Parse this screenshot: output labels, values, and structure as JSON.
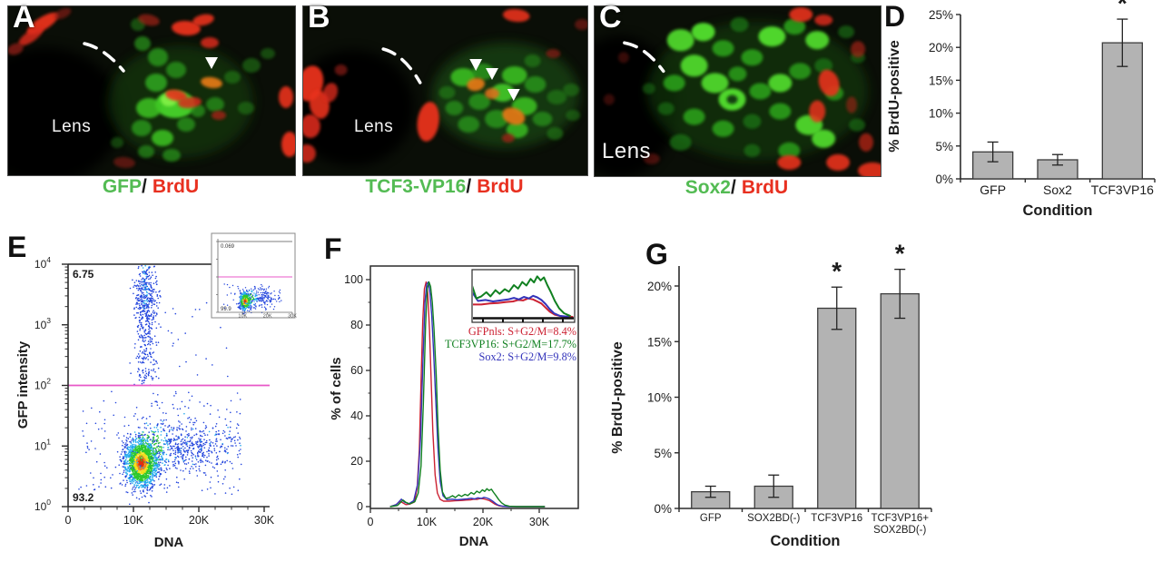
{
  "panels": {
    "A": {
      "letter": "A",
      "lens_label": "Lens",
      "caption": {
        "green": "GFP",
        "slash": "/",
        "red": "BrdU"
      },
      "arrowheads": 1
    },
    "B": {
      "letter": "B",
      "lens_label": "Lens",
      "caption": {
        "green": "TCF3-VP16",
        "slash": "/",
        "red": "BrdU"
      },
      "arrowheads": 3
    },
    "C": {
      "letter": "C",
      "lens_label": "Lens",
      "caption": {
        "green": "Sox2",
        "slash": "/",
        "red": "BrdU"
      },
      "arrowheads": 0
    },
    "D": {
      "letter": "D"
    },
    "E": {
      "letter": "E"
    },
    "F": {
      "letter": "F"
    },
    "G": {
      "letter": "G"
    }
  },
  "colors": {
    "caption_green": "#53bb53",
    "caption_red": "#e83020",
    "caption_slash": "#1c1c1c",
    "bar_fill": "#b3b3b3",
    "bar_stroke": "#3c3c3c",
    "axis": "#2b2b2b",
    "gate_line": "#e858c8",
    "scatter_palette": [
      "#e03010",
      "#f08020",
      "#f0e020",
      "#2ec82e",
      "#22aaee",
      "#2244dd"
    ]
  },
  "chart_data": [
    {
      "id": "D",
      "type": "bar",
      "title": "",
      "ylabel": "% BrdU-positive",
      "xlabel": "Condition",
      "categories": [
        "GFP",
        "Sox2",
        "TCF3VP16"
      ],
      "values": [
        4.1,
        2.9,
        20.7
      ],
      "errors": [
        1.5,
        0.8,
        3.6
      ],
      "significance": [
        "",
        "",
        "*"
      ],
      "ylim": [
        0,
        25
      ],
      "ytick_labels": [
        "0%",
        "5%",
        "10%",
        "15%",
        "20%",
        "25%"
      ],
      "legend_position": "none",
      "grid": false
    },
    {
      "id": "E",
      "type": "scatter",
      "title": "",
      "xlabel": "DNA",
      "ylabel": "GFP intensity",
      "xlim": [
        0,
        30000
      ],
      "xtick_labels": [
        "0",
        "10K",
        "20K",
        "30K"
      ],
      "ytick_exponents": [
        0,
        1,
        2,
        3,
        4
      ],
      "yscale": "log",
      "gate_top_label": "6.75",
      "gate_bottom_label": "93.2",
      "gate_line_log": 2,
      "clusters": [
        {
          "name": "g1-population",
          "n": 1800,
          "cx": 11200,
          "sx": 1250,
          "cy_log": 0.72,
          "sy_log": 0.2
        },
        {
          "name": "s-g2-tail",
          "n": 620,
          "cx": 16500,
          "sx": 4300,
          "cy_log": 1.0,
          "sy_log": 0.22
        },
        {
          "name": "gfp-positive-plume",
          "n": 560,
          "cx": 11800,
          "sx": 850,
          "log_min": 2.0,
          "log_max": 4.0
        },
        {
          "name": "background",
          "n": 200,
          "x_min": 1500,
          "x_max": 26500,
          "log_min": 0.2,
          "log_max": 1.9
        },
        {
          "name": "upper-sparse",
          "n": 28,
          "x_min": 13000,
          "x_max": 25000,
          "log_min": 2.1,
          "log_max": 3.5
        }
      ],
      "inset": {
        "gate_top_label": "0.069",
        "gate_bottom_label": "99.9",
        "xtick_labels": [
          "10K",
          "20K",
          "30K"
        ]
      }
    },
    {
      "id": "F",
      "type": "line",
      "title": "",
      "xlabel": "DNA",
      "ylabel": "% of cells",
      "xlim": [
        0,
        32000
      ],
      "ylim": [
        0,
        100
      ],
      "points_x_unit": "K",
      "ytick_labels": [
        "0",
        "20",
        "40",
        "60",
        "80",
        "100"
      ],
      "xtick_labels": [
        "0",
        "10K",
        "20K",
        "30K"
      ],
      "legend_position": "right-of-inset",
      "series": [
        {
          "name": "GFPnls",
          "legend": "GFPnls: S+G2/M=8.4%",
          "color": "#cc2233",
          "points": [
            [
              3.5,
              0
            ],
            [
              4.5,
              0.8
            ],
            [
              5.3,
              2.4
            ],
            [
              5.8,
              1.6
            ],
            [
              6.3,
              0.9
            ],
            [
              7,
              1.1
            ],
            [
              7.8,
              2
            ],
            [
              8.3,
              8
            ],
            [
              8.7,
              25
            ],
            [
              9,
              55
            ],
            [
              9.3,
              82
            ],
            [
              9.6,
              96
            ],
            [
              9.9,
              99
            ],
            [
              10.2,
              94
            ],
            [
              10.5,
              78
            ],
            [
              10.8,
              55
            ],
            [
              11.1,
              33
            ],
            [
              11.5,
              14
            ],
            [
              11.9,
              6
            ],
            [
              12.4,
              3.2
            ],
            [
              13,
              2.4
            ],
            [
              14,
              2.4
            ],
            [
              15,
              2.6
            ],
            [
              16,
              2.7
            ],
            [
              17,
              2.9
            ],
            [
              17.8,
              3
            ],
            [
              18.4,
              3.3
            ],
            [
              19,
              3.2
            ],
            [
              19.6,
              3.6
            ],
            [
              20.2,
              3.4
            ],
            [
              20.7,
              3
            ],
            [
              21.2,
              2.6
            ],
            [
              21.7,
              1.8
            ],
            [
              22.2,
              1
            ],
            [
              22.8,
              0.4
            ],
            [
              23.6,
              0.1
            ],
            [
              25,
              0
            ],
            [
              31,
              0
            ]
          ]
        },
        {
          "name": "TCF3VP16",
          "legend": "TCF3VP16: S+G2/M=17.7%",
          "color": "#108020",
          "points": [
            [
              3.5,
              0
            ],
            [
              4.8,
              0.5
            ],
            [
              5.8,
              2.9
            ],
            [
              6.3,
              1.9
            ],
            [
              7,
              1.2
            ],
            [
              7.9,
              2.2
            ],
            [
              8.5,
              6
            ],
            [
              9,
              18
            ],
            [
              9.4,
              45
            ],
            [
              9.8,
              80
            ],
            [
              10.1,
              96
            ],
            [
              10.4,
              99
            ],
            [
              10.7,
              97
            ],
            [
              11,
              90
            ],
            [
              11.3,
              78
            ],
            [
              11.7,
              58
            ],
            [
              12,
              36
            ],
            [
              12.4,
              16
            ],
            [
              12.8,
              6.5
            ],
            [
              13.4,
              3.6
            ],
            [
              14,
              4
            ],
            [
              14.6,
              4.8
            ],
            [
              15.1,
              4
            ],
            [
              15.7,
              5.2
            ],
            [
              16.2,
              4.5
            ],
            [
              16.8,
              5.4
            ],
            [
              17.3,
              4.9
            ],
            [
              17.9,
              6.2
            ],
            [
              18.4,
              5.5
            ],
            [
              18.9,
              6.8
            ],
            [
              19.4,
              6.1
            ],
            [
              19.9,
              7.4
            ],
            [
              20.3,
              6.7
            ],
            [
              20.7,
              7.9
            ],
            [
              21.1,
              7.1
            ],
            [
              21.5,
              7.7
            ],
            [
              21.9,
              6.2
            ],
            [
              22.3,
              4.9
            ],
            [
              22.8,
              3.1
            ],
            [
              23.3,
              1.7
            ],
            [
              23.9,
              0.7
            ],
            [
              24.7,
              0.15
            ],
            [
              26,
              0
            ],
            [
              31,
              0
            ]
          ]
        },
        {
          "name": "Sox2",
          "legend": "Sox2: S+G2/M=9.8%",
          "color": "#3434bb",
          "points": [
            [
              3.5,
              0
            ],
            [
              4.6,
              0.9
            ],
            [
              5.5,
              3.3
            ],
            [
              6,
              2.1
            ],
            [
              6.8,
              1.2
            ],
            [
              7.7,
              2.6
            ],
            [
              8.4,
              10
            ],
            [
              8.9,
              30
            ],
            [
              9.3,
              62
            ],
            [
              9.7,
              90
            ],
            [
              10,
              98
            ],
            [
              10.3,
              99
            ],
            [
              10.6,
              94
            ],
            [
              10.9,
              84
            ],
            [
              11.2,
              70
            ],
            [
              11.6,
              48
            ],
            [
              12,
              26
            ],
            [
              12.4,
              11
            ],
            [
              12.9,
              4.8
            ],
            [
              13.6,
              3.1
            ],
            [
              14.5,
              3.3
            ],
            [
              15.4,
              3
            ],
            [
              16.3,
              3.2
            ],
            [
              17.2,
              3.4
            ],
            [
              17.9,
              3.7
            ],
            [
              18.5,
              3.4
            ],
            [
              19.1,
              3.9
            ],
            [
              19.7,
              3.6
            ],
            [
              20.2,
              4.1
            ],
            [
              20.7,
              3.8
            ],
            [
              21.2,
              3.3
            ],
            [
              21.7,
              2.5
            ],
            [
              22.2,
              1.5
            ],
            [
              22.7,
              0.7
            ],
            [
              23.4,
              0.2
            ],
            [
              24.5,
              0
            ],
            [
              31,
              0
            ]
          ]
        }
      ],
      "inset_x_range": [
        13000,
        25000
      ]
    },
    {
      "id": "G",
      "type": "bar",
      "title": "",
      "ylabel": "% BrdU-positive",
      "xlabel": "Condition",
      "categories": [
        "GFP",
        "SOX2BD(-)",
        "TCF3VP16",
        [
          "TCF3VP16+",
          "SOX2BD(-)"
        ]
      ],
      "values": [
        1.5,
        2.0,
        18.0,
        19.3
      ],
      "errors": [
        0.5,
        1.0,
        1.9,
        2.2
      ],
      "significance": [
        "",
        "",
        "*",
        "*"
      ],
      "ylim": [
        0,
        20
      ],
      "ytick_labels": [
        "0%",
        "5%",
        "10%",
        "15%",
        "20%"
      ],
      "legend_position": "none",
      "grid": false
    }
  ]
}
